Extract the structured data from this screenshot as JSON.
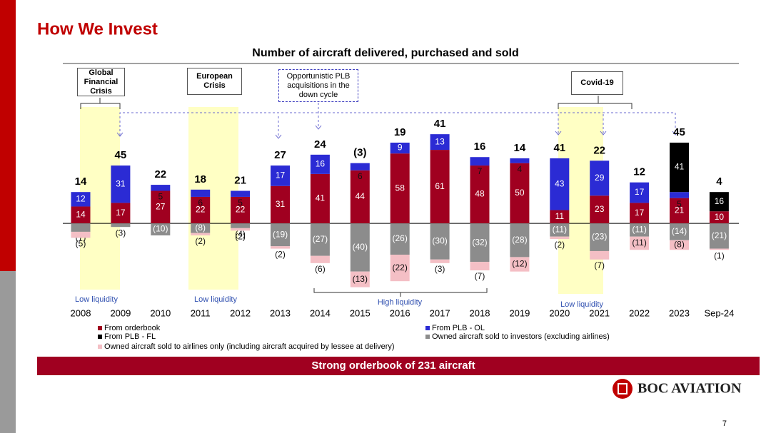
{
  "header": {
    "title": "How We Invest"
  },
  "chart_data": {
    "type": "stacked_bar",
    "title": "Number of aircraft delivered, purchased and sold",
    "categories": [
      "2008",
      "2009",
      "2010",
      "2011",
      "2012",
      "2013",
      "2014",
      "2015",
      "2016",
      "2017",
      "2018",
      "2019",
      "2020",
      "2021",
      "2022",
      "2023",
      "Sep-24"
    ],
    "series": [
      {
        "name": "From orderbook",
        "color": "#a00020",
        "values": [
          14,
          17,
          27,
          22,
          22,
          31,
          41,
          44,
          58,
          61,
          48,
          50,
          11,
          23,
          17,
          21,
          10
        ]
      },
      {
        "name": "From PLB - OL",
        "color": "#2b2bd4",
        "values": [
          12,
          31,
          5,
          6,
          5,
          17,
          16,
          6,
          9,
          13,
          7,
          4,
          43,
          29,
          17,
          5,
          null
        ]
      },
      {
        "name": "From PLB - FL",
        "color": "#000000",
        "values": [
          null,
          null,
          null,
          null,
          null,
          null,
          null,
          null,
          null,
          null,
          null,
          null,
          null,
          null,
          null,
          41,
          16
        ]
      },
      {
        "name": "Owned aircraft sold to investors (excluding airlines)",
        "color": "#8c8c8c",
        "values": [
          -7,
          -3,
          -10,
          -8,
          -4,
          -19,
          -27,
          -40,
          -26,
          -30,
          -32,
          -28,
          -11,
          -23,
          -11,
          -14,
          -21
        ],
        "value_labels": [
          "(7)",
          "(3)",
          "(10)",
          "(8)",
          "(4)",
          "(19)",
          "(27)",
          "(40)",
          "(26)",
          "(30)",
          "(32)",
          "(28)",
          "(11)",
          "(23)",
          "(11)",
          "(14)",
          "(21)"
        ]
      },
      {
        "name": "Owned aircraft sold to airlines only (including aircraft acquired by lessee at delivery)",
        "color": "#f4bfc5",
        "values": [
          -5,
          null,
          null,
          -2,
          -2,
          -2,
          -6,
          -13,
          -22,
          -3,
          -7,
          -12,
          -2,
          -7,
          -11,
          -8,
          -1
        ],
        "value_labels": [
          "(5)",
          null,
          null,
          "(2)",
          "(2)",
          "(2)",
          "(6)",
          "(13)",
          "(22)",
          "(3)",
          "(7)",
          "(12)",
          "(2)",
          "(7)",
          "(11)",
          "(8)",
          "(1)"
        ]
      }
    ],
    "net_totals": {
      "values": [
        14,
        45,
        22,
        18,
        21,
        27,
        24,
        -3,
        19,
        41,
        16,
        14,
        41,
        22,
        12,
        45,
        4
      ],
      "value_labels": [
        "14",
        "45",
        "22",
        "18",
        "21",
        "27",
        "24",
        "(3)",
        "19",
        "41",
        "16",
        "14",
        "41",
        "22",
        "12",
        "45",
        "4"
      ]
    },
    "ylim": [
      -55,
      80
    ],
    "annotations": [
      "Global Financial Crisis",
      "European Crisis",
      "Opportunistic PLB acquisitions in the down cycle",
      "Covid-19"
    ],
    "liquidity_labels": [
      "Low liquidity",
      "Low liquidity",
      "High liquidity",
      "Low liquidity"
    ]
  },
  "footer": {
    "banner": "Strong orderbook of 231 aircraft",
    "logo": "BOC AVIATION",
    "page_number": "7"
  }
}
